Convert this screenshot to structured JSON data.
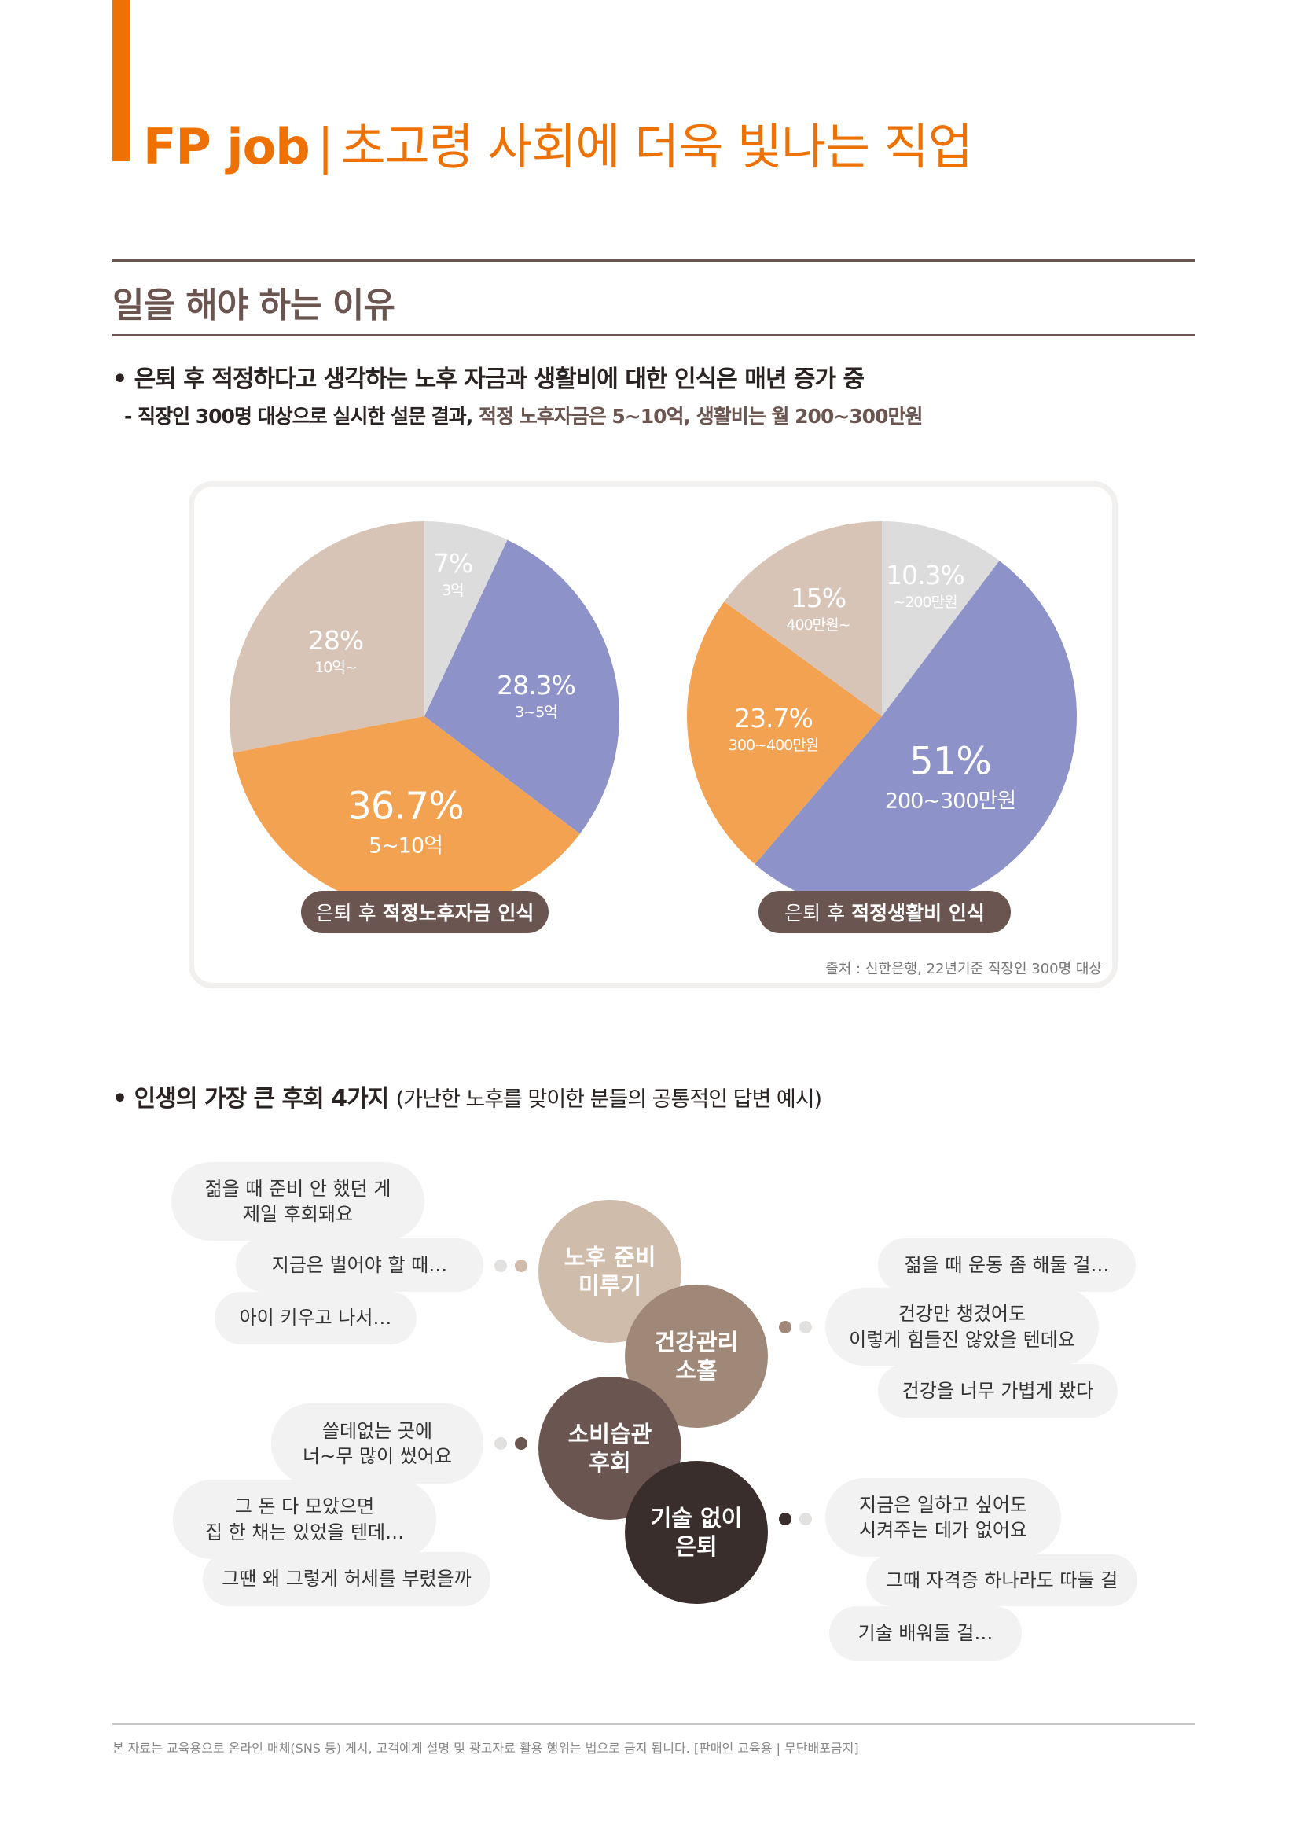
{
  "header": {
    "title_main": "FP job",
    "separator": "|",
    "title_sub": "초고령 사회에 더욱 빛나는 직업",
    "accent_color": "#ee7203"
  },
  "section": {
    "title": "일을 해야 하는 이유"
  },
  "bullet1": {
    "text": "• 은퇴 후 적정하다고 생각하는 노후 자금과 생활비에 대한 인식은 매년 증가 중",
    "sub_prefix": "- 직장인 300명 대상으로 실시한 설문 결과, ",
    "sub_highlight": "적정 노후자금은 5~10억, 생활비는 월 200~300만원"
  },
  "chart_data": [
    {
      "type": "pie",
      "title_prefix": "은퇴 후",
      "title_bold": "적정노후자금 인식",
      "slices": [
        {
          "label": "3억",
          "value": 7,
          "text": "7%",
          "color": "#dddcdc"
        },
        {
          "label": "3~5억",
          "value": 28.3,
          "text": "28.3%",
          "color": "#8d93c8"
        },
        {
          "label": "5~10억",
          "value": 36.7,
          "text": "36.7%",
          "color": "#f2a251"
        },
        {
          "label": "10억~",
          "value": 28,
          "text": "28%",
          "color": "#d8c4b6"
        }
      ]
    },
    {
      "type": "pie",
      "title_prefix": "은퇴 후",
      "title_bold": "적정생활비 인식",
      "slices": [
        {
          "label": "~200만원",
          "value": 10.3,
          "text": "10.3%",
          "color": "#dddcdc"
        },
        {
          "label": "200~300만원",
          "value": 51,
          "text": "51%",
          "color": "#8d93c8"
        },
        {
          "label": "300~400만원",
          "value": 23.7,
          "text": "23.7%",
          "color": "#f2a251"
        },
        {
          "label": "400만원~",
          "value": 15,
          "text": "15%",
          "color": "#d8c4b6"
        }
      ]
    }
  ],
  "source": "출처 : 신한은행, 22년기준 직장인 300명 대상",
  "bullet2": {
    "text": "• 인생의 가장 큰 후회 4가지",
    "note": "(가난한 노후를 맞이한 분들의 공통적인 답변 예시)"
  },
  "regrets": [
    {
      "title": "노후 준비\n미루기",
      "color": "#d0bcab",
      "quotes": [
        "젊을 때 준비 안 했던 게\n제일 후회돼요",
        "지금은 벌어야 할 때…",
        "아이 키우고 나서…"
      ]
    },
    {
      "title": "건강관리\n소홀",
      "color": "#a08878",
      "quotes": [
        "젊을 때 운동 좀 해둘 걸…",
        "건강만 챙겼어도\n이렇게 힘들진 않았을 텐데요",
        "건강을 너무 가볍게 봤다"
      ]
    },
    {
      "title": "소비습관\n후회",
      "color": "#6b5550",
      "quotes": [
        "쓸데없는 곳에\n너~무 많이 썼어요",
        "그 돈 다 모았으면\n집 한 채는 있었을 텐데…",
        "그땐 왜 그렇게 허세를 부렸을까"
      ]
    },
    {
      "title": "기술 없이\n은퇴",
      "color": "#3a2e2c",
      "quotes": [
        "지금은 일하고 싶어도\n시켜주는 데가 없어요",
        "그때 자격증 하나라도 따둘 걸",
        "기술 배워둘 걸…"
      ]
    }
  ],
  "footer": "본 자료는 교육용으로 온라인 매체(SNS 등) 게시, 고객에게 설명 및 광고자료 활용 행위는 법으로 금지 됩니다. [판매인 교육용 | 무단배포금지]"
}
